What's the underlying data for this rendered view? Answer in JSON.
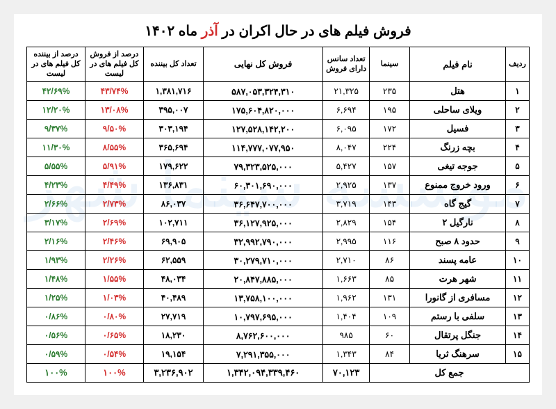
{
  "title_prefix": "فروش فیلم های در حال اکران در ",
  "title_red": "آذر",
  "title_suffix": " ماه ۱۴۰۲",
  "watermark": "موسسه سینما شهر",
  "columns": {
    "rank": "ردیف",
    "name": "نام فیلم",
    "cinema": "سینما",
    "sessions": "تعداد سانس دارای فروش",
    "gross": "فروش کل نهایی",
    "viewers": "تعداد کل بیننده",
    "pct_gross": "درصد از فروش کل فیلم های در لیست",
    "pct_view": "درصد از بیننده کل فیلم های در لیست"
  },
  "rows": [
    {
      "rank": "۱",
      "name": "هتل",
      "cinema": "۲۳۵",
      "sessions": "۲۱,۳۲۵",
      "gross": "۵۸۷,۰۵۳,۳۲۴,۳۱۰",
      "viewers": "۱,۳۸۱,۷۱۶",
      "pct_gross": "۴۳/۷۴%",
      "pct_view": "۴۲/۶۹%"
    },
    {
      "rank": "۲",
      "name": "ویلای ساحلی",
      "cinema": "۱۹۵",
      "sessions": "۶,۶۹۴",
      "gross": "۱۷۵,۶۰۴,۸۲۰,۰۰۰",
      "viewers": "۳۹۵,۰۰۷",
      "pct_gross": "۱۳/۰۸%",
      "pct_view": "۱۲/۲۰%"
    },
    {
      "rank": "۳",
      "name": "فسیل",
      "cinema": "۱۷۲",
      "sessions": "۶,۰۹۵",
      "gross": "۱۲۷,۵۲۸,۱۴۲,۲۰۰",
      "viewers": "۳۰۳,۱۹۴",
      "pct_gross": "۹/۵۰%",
      "pct_view": "۹/۳۷%"
    },
    {
      "rank": "۴",
      "name": "بچه زرنگ",
      "cinema": "۲۲۴",
      "sessions": "۸,۰۴۷",
      "gross": "۱۱۴,۷۷۷,۰۷۷,۹۵۰",
      "viewers": "۳۶۵,۶۹۴",
      "pct_gross": "۸/۵۵%",
      "pct_view": "۱۱/۳۰%"
    },
    {
      "rank": "۵",
      "name": "جوجه تیغی",
      "cinema": "۱۵۷",
      "sessions": "۵,۴۲۷",
      "gross": "۷۹,۳۲۳,۵۲۵,۰۰۰",
      "viewers": "۱۷۹,۶۲۲",
      "pct_gross": "۵/۹۱%",
      "pct_view": "۵/۵۵%"
    },
    {
      "rank": "۶",
      "name": "ورود خروج ممنوع",
      "cinema": "۱۳۷",
      "sessions": "۲,۹۲۵",
      "gross": "۶۰,۳۰۱,۶۹۰,۰۰۰",
      "viewers": "۱۳۶,۸۳۱",
      "pct_gross": "۴/۴۹%",
      "pct_view": "۴/۲۳%"
    },
    {
      "rank": "۷",
      "name": "گیج گاه",
      "cinema": "۱۴۳",
      "sessions": "۳,۷۱۹",
      "gross": "۳۶,۶۴۷,۷۰۰,۰۰۰",
      "viewers": "۸۶,۰۳۷",
      "pct_gross": "۲/۷۳%",
      "pct_view": "۲/۶۶%"
    },
    {
      "rank": "۸",
      "name": "نارگیل ۲",
      "cinema": "۱۵۴",
      "sessions": "۲,۸۲۹",
      "gross": "۳۶,۱۲۷,۹۲۵,۰۰۰",
      "viewers": "۱۰۲,۷۱۱",
      "pct_gross": "۲/۶۹%",
      "pct_view": "۳/۱۷%"
    },
    {
      "rank": "۹",
      "name": "حدود ۸ صبح",
      "cinema": "۱۱۶",
      "sessions": "۲,۹۹۵",
      "gross": "۳۲,۹۹۲,۷۹۰,۰۰۰",
      "viewers": "۶۹,۹۰۵",
      "pct_gross": "۲/۴۶%",
      "pct_view": "۲/۱۶%"
    },
    {
      "rank": "۱۰",
      "name": "عامه پسند",
      "cinema": "۸۶",
      "sessions": "۲,۷۱۰",
      "gross": "۳۰,۲۷۹,۷۱۰,۰۰۰",
      "viewers": "۶۲,۵۵۹",
      "pct_gross": "۲/۲۶%",
      "pct_view": "۱/۹۳%"
    },
    {
      "rank": "۱۱",
      "name": "شهر هرت",
      "cinema": "۸۵",
      "sessions": "۱,۶۶۳",
      "gross": "۲۰,۸۴۷,۸۸۵,۰۰۰",
      "viewers": "۴۸,۰۳۴",
      "pct_gross": "۱/۵۵%",
      "pct_view": "۱/۴۸%"
    },
    {
      "rank": "۱۲",
      "name": "مسافری از گانورا",
      "cinema": "۱۳۱",
      "sessions": "۱,۹۶۲",
      "gross": "۱۳,۷۵۸,۱۰۰,۰۰۰",
      "viewers": "۴۰,۴۸۹",
      "pct_gross": "۱/۰۳%",
      "pct_view": "۱/۲۵%"
    },
    {
      "rank": "۱۳",
      "name": "سلفی با رستم",
      "cinema": "۱۰۹",
      "sessions": "۱,۴۰۴",
      "gross": "۱۰,۷۹۷,۶۹۵,۰۰۰",
      "viewers": "۲۷,۷۱۹",
      "pct_gross": "۰/۸۰%",
      "pct_view": "۰/۸۶%"
    },
    {
      "rank": "۱۴",
      "name": "جنگل پرتقال",
      "cinema": "۶۰",
      "sessions": "۹۸۵",
      "gross": "۸,۷۶۲,۶۰۰,۰۰۰",
      "viewers": "۱۸,۲۳۰",
      "pct_gross": "۰/۶۵%",
      "pct_view": "۰/۵۶%"
    },
    {
      "rank": "۱۵",
      "name": "سرهنگ ثریا",
      "cinema": "۸۴",
      "sessions": "۱,۳۴۳",
      "gross": "۷,۲۹۱,۳۵۵,۰۰۰",
      "viewers": "۱۹,۱۵۴",
      "pct_gross": "۰/۵۴%",
      "pct_view": "۰/۵۹%"
    }
  ],
  "total": {
    "label": "جمع کل",
    "sessions": "۷۰,۱۲۳",
    "gross": "۱,۳۴۲,۰۹۴,۳۳۹,۴۶۰",
    "viewers": "۳,۲۳۶,۹۰۲",
    "pct_gross": "۱۰۰%",
    "pct_view": "۱۰۰%"
  }
}
